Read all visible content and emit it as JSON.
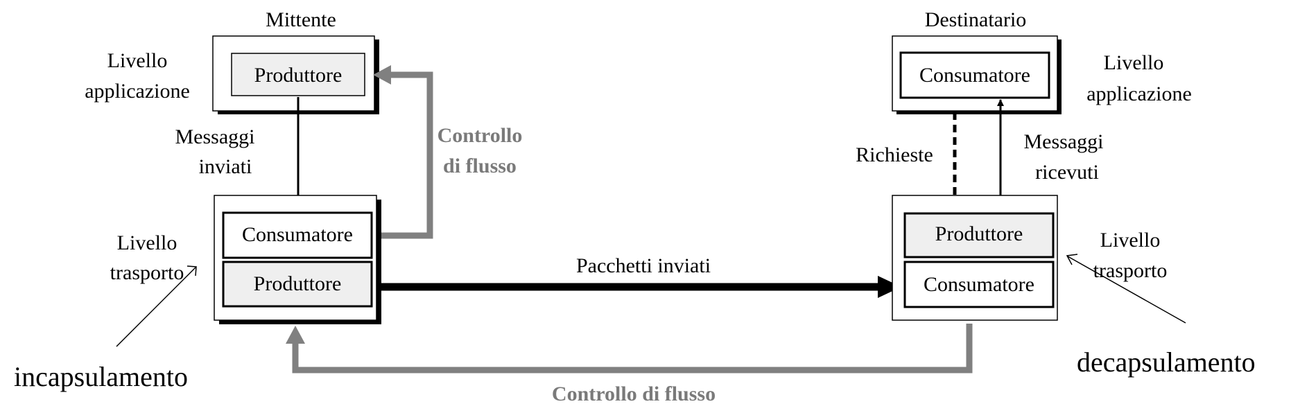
{
  "sender": {
    "title": "Mittente",
    "app_level_label": [
      "Livello",
      "applicazione"
    ],
    "app_box": "Produttore",
    "transport_level_label": [
      "Livello",
      "trasporto"
    ],
    "transport_consumer": "Consumatore",
    "transport_producer": "Produttore",
    "sent_messages_label": [
      "Messaggi",
      "inviati"
    ]
  },
  "receiver": {
    "title": "Destinatario",
    "app_level_label": [
      "Livello",
      "applicazione"
    ],
    "app_box": "Consumatore",
    "transport_level_label": [
      "Livello",
      "trasporto"
    ],
    "transport_producer": "Produttore",
    "transport_consumer": "Consumatore",
    "requests_label": "Richieste",
    "received_messages_label": [
      "Messaggi",
      "ricevuti"
    ]
  },
  "flow_control_upper": [
    "Controllo",
    "di flusso"
  ],
  "flow_control_lower": "Controllo di flusso",
  "packets_label": "Pacchetti inviati",
  "encapsulation_label": "incapsulamento",
  "decapsulation_label": "decapsulamento",
  "colors": {
    "box_fill": "#efefef",
    "stroke": "#000000",
    "flow_gray": "#808080",
    "flow_text": "#7a7a7a"
  }
}
